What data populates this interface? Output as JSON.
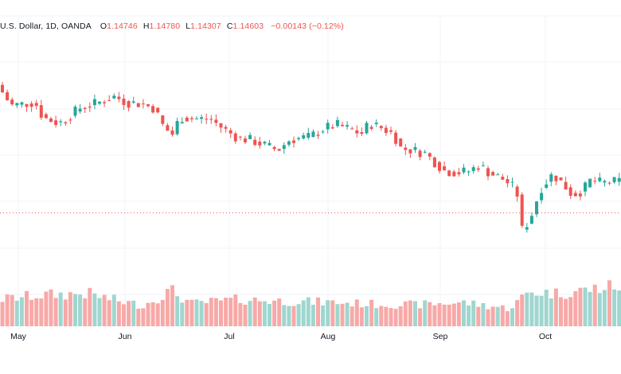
{
  "legend": {
    "symbol_text": "U.S. Dollar, 1D, OANDA",
    "o_label": "O",
    "o_value": "1.14746",
    "h_label": "H",
    "h_value": "1.14780",
    "l_label": "L",
    "l_value": "1.14307",
    "c_label": "C",
    "c_value": "1.14603",
    "change": "−0.00143 (−0.12%)"
  },
  "colors": {
    "up": "#26a69a",
    "down": "#ef5350",
    "vol_up": "#9fd6cf",
    "vol_down": "#f7a9a7",
    "grid": "#f0f3fa",
    "text": "#131722",
    "price_line": "#ef5350"
  },
  "chart_data": {
    "type": "candlestick",
    "x_ticks": [
      "May",
      "Jun",
      "Jul",
      "Aug",
      "Sep",
      "Oct"
    ],
    "x_tick_days": [
      23,
      157,
      288,
      412,
      553,
      685
    ],
    "price_range": [
      1.108,
      1.212
    ],
    "current_price": 1.14603,
    "ohlc_points": [
      {
        "day": 0,
        "o": 1.1901
      },
      {
        "day": 20,
        "o": 1.182
      },
      {
        "day": 50,
        "o": 1.183
      },
      {
        "day": 60,
        "o": 1.178
      },
      {
        "day": 80,
        "o": 1.176
      },
      {
        "day": 90,
        "o": 1.1775
      },
      {
        "day": 105,
        "o": 1.181
      },
      {
        "day": 130,
        "o": 1.183
      },
      {
        "day": 150,
        "o": 1.185
      },
      {
        "day": 165,
        "o": 1.183
      },
      {
        "day": 185,
        "o": 1.1825
      },
      {
        "day": 200,
        "o": 1.181
      },
      {
        "day": 210,
        "o": 1.1755
      },
      {
        "day": 222,
        "o": 1.172
      },
      {
        "day": 232,
        "o": 1.178
      },
      {
        "day": 250,
        "o": 1.1775
      },
      {
        "day": 270,
        "o": 1.1775
      },
      {
        "day": 285,
        "o": 1.1745
      },
      {
        "day": 305,
        "o": 1.171
      },
      {
        "day": 320,
        "o": 1.1705
      },
      {
        "day": 335,
        "o": 1.169
      },
      {
        "day": 355,
        "o": 1.167
      },
      {
        "day": 370,
        "o": 1.1705
      },
      {
        "day": 395,
        "o": 1.1715
      },
      {
        "day": 415,
        "o": 1.1745
      },
      {
        "day": 430,
        "o": 1.1755
      },
      {
        "day": 445,
        "o": 1.174
      },
      {
        "day": 460,
        "o": 1.1725
      },
      {
        "day": 470,
        "o": 1.176
      },
      {
        "day": 485,
        "o": 1.1745
      },
      {
        "day": 500,
        "o": 1.1725
      },
      {
        "day": 510,
        "o": 1.1675
      },
      {
        "day": 525,
        "o": 1.167
      },
      {
        "day": 540,
        "o": 1.166
      },
      {
        "day": 552,
        "o": 1.163
      },
      {
        "day": 565,
        "o": 1.16
      },
      {
        "day": 580,
        "o": 1.1595
      },
      {
        "day": 595,
        "o": 1.16
      },
      {
        "day": 608,
        "o": 1.162
      },
      {
        "day": 620,
        "o": 1.1595
      },
      {
        "day": 640,
        "o": 1.157
      },
      {
        "day": 655,
        "o": 1.1535
      },
      {
        "day": 662,
        "o": 1.14
      },
      {
        "day": 672,
        "o": 1.144
      },
      {
        "day": 685,
        "o": 1.154
      },
      {
        "day": 700,
        "o": 1.159
      },
      {
        "day": 712,
        "o": 1.156
      },
      {
        "day": 725,
        "o": 1.152
      },
      {
        "day": 738,
        "o": 1.1535
      },
      {
        "day": 748,
        "o": 1.157
      },
      {
        "day": 762,
        "o": 1.156
      },
      {
        "day": 780,
        "o": 1.1565
      }
    ],
    "volume_profile": [
      {
        "day": 0,
        "v": 0.45
      },
      {
        "day": 50,
        "v": 0.52
      },
      {
        "day": 110,
        "v": 0.55
      },
      {
        "day": 150,
        "v": 0.42
      },
      {
        "day": 180,
        "v": 0.35
      },
      {
        "day": 215,
        "v": 0.6
      },
      {
        "day": 240,
        "v": 0.38
      },
      {
        "day": 300,
        "v": 0.45
      },
      {
        "day": 360,
        "v": 0.42
      },
      {
        "day": 420,
        "v": 0.4
      },
      {
        "day": 470,
        "v": 0.37
      },
      {
        "day": 520,
        "v": 0.36
      },
      {
        "day": 580,
        "v": 0.4
      },
      {
        "day": 640,
        "v": 0.3
      },
      {
        "day": 665,
        "v": 0.58
      },
      {
        "day": 700,
        "v": 0.55
      },
      {
        "day": 760,
        "v": 0.65
      },
      {
        "day": 780,
        "v": 0.68
      }
    ]
  }
}
